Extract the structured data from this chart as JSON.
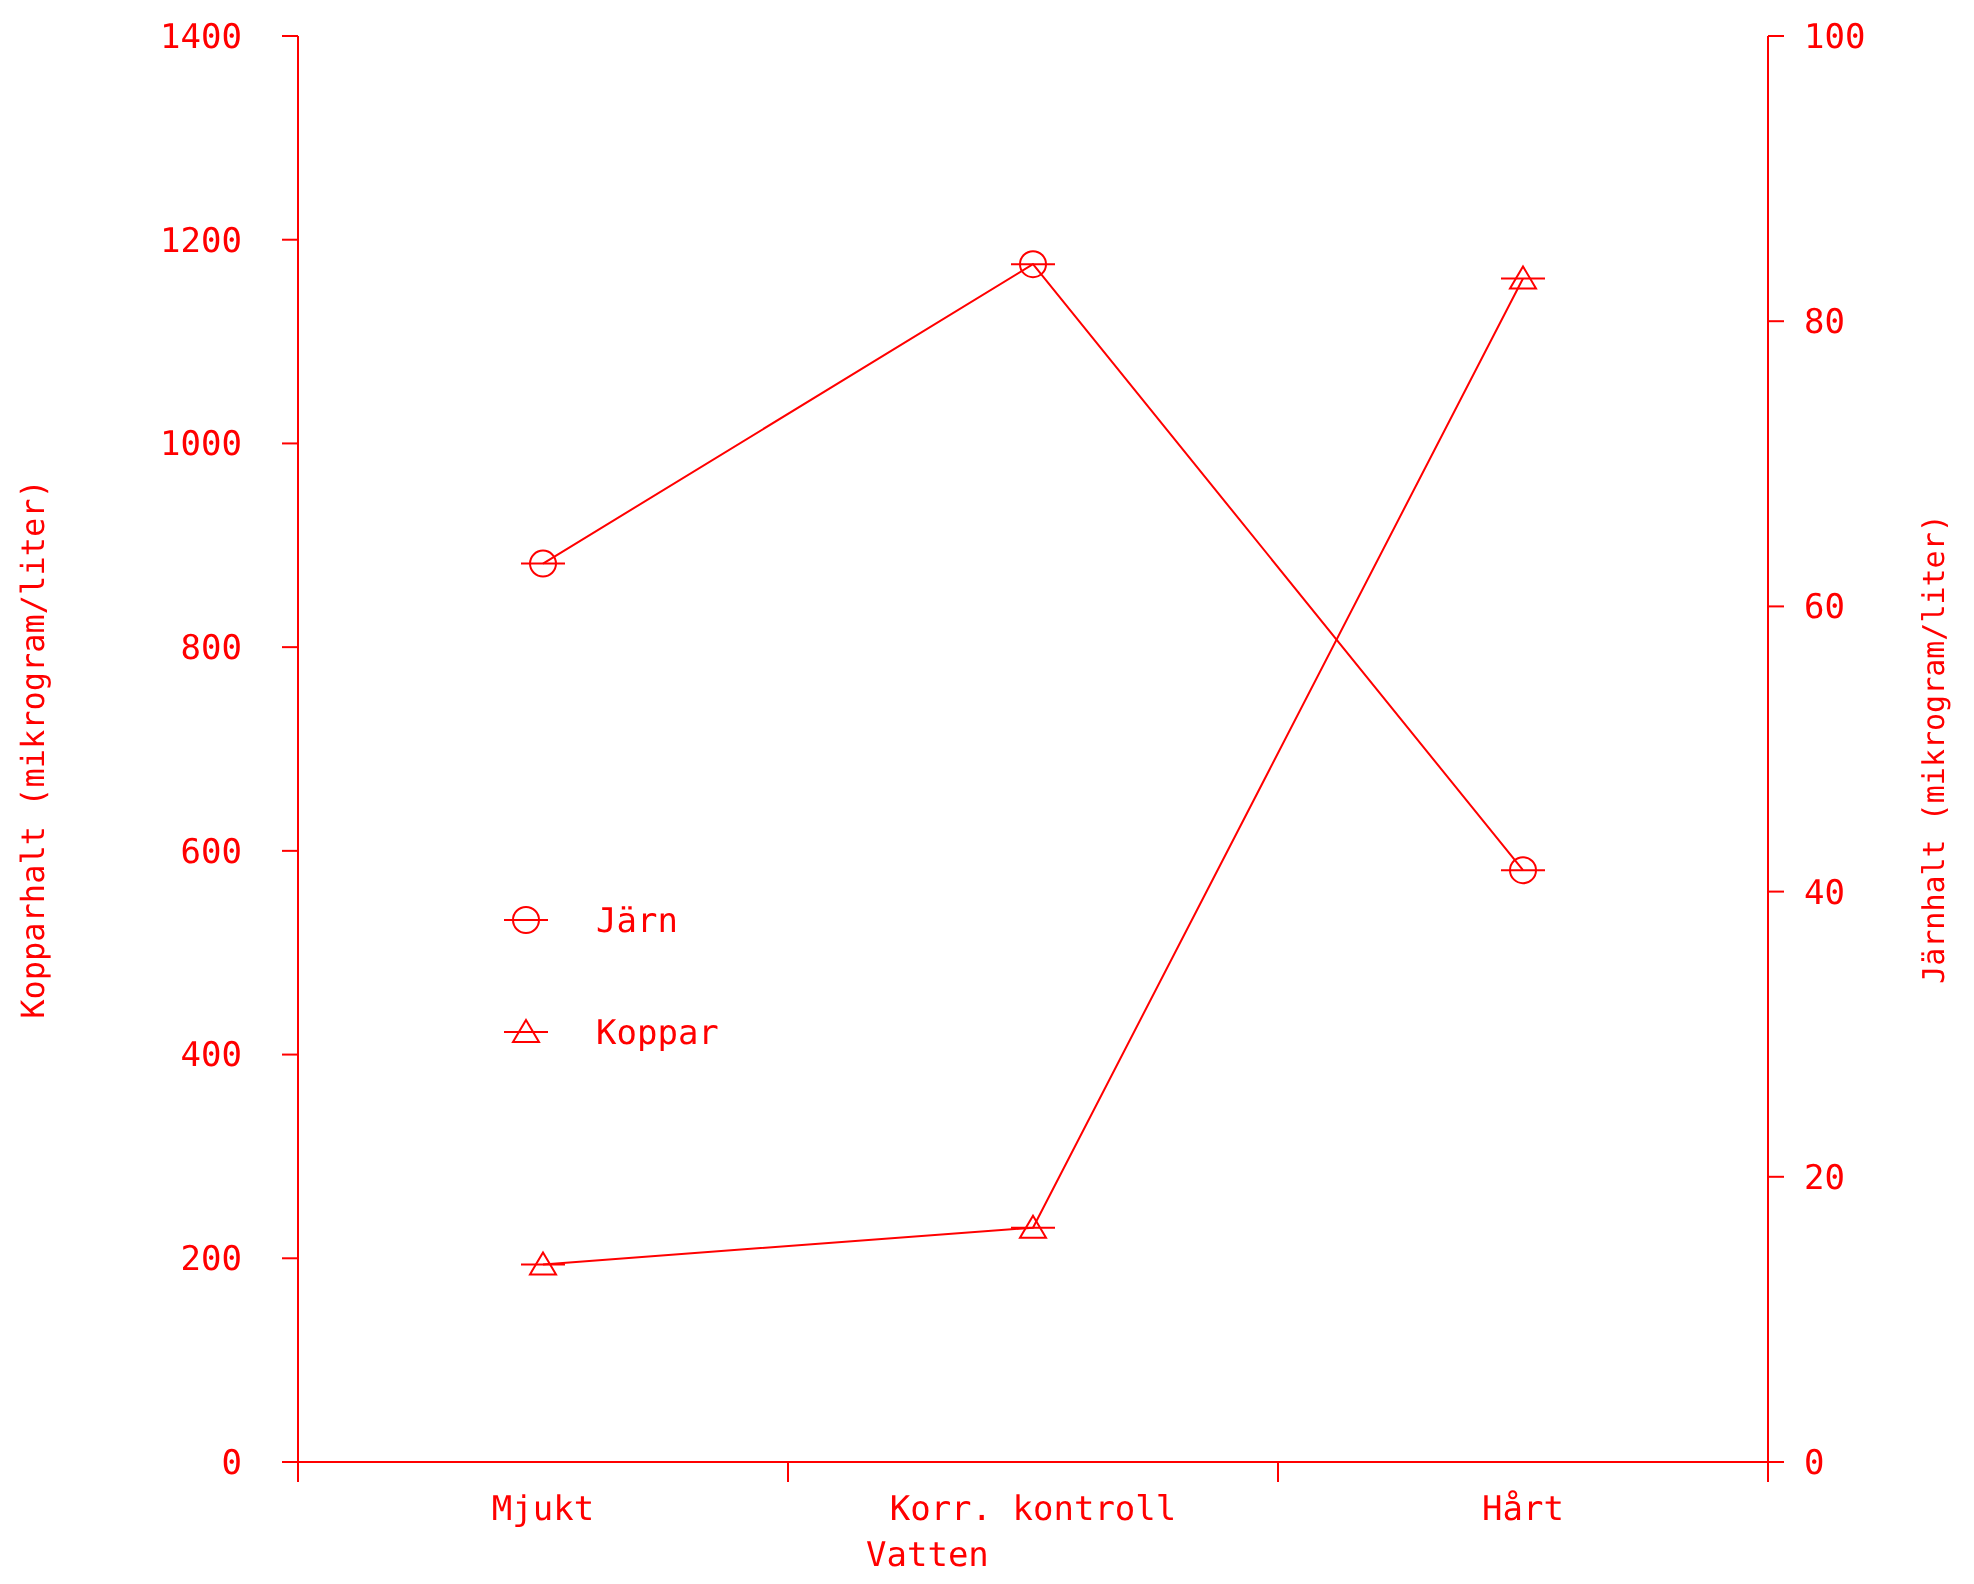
{
  "chart_data": {
    "type": "line",
    "xlabel": "Vatten",
    "ylabel": "Kopparhalt (mikrogram/liter)",
    "y2label": "Järnhalt (mikrogram/liter)",
    "categories": [
      "Mjukt",
      "Korr. kontroll",
      "Hårt"
    ],
    "series": [
      {
        "name": "Järn",
        "color": "#ff0000",
        "values": [
          63,
          84,
          41.5
        ],
        "axis": "y2",
        "marker": "circle"
      },
      {
        "name": "Koppar",
        "color": "#ff0000",
        "values": [
          194,
          230,
          1162
        ],
        "marker": "triangle"
      }
    ],
    "ylim": [
      0,
      1400
    ],
    "yticks": [
      0,
      200,
      400,
      600,
      800,
      1000,
      1200,
      1400
    ],
    "y2lim": [
      0,
      100
    ],
    "y2ticks": [
      0,
      20,
      40,
      60,
      80,
      100
    ],
    "legend": "left",
    "line_style": "solid"
  }
}
